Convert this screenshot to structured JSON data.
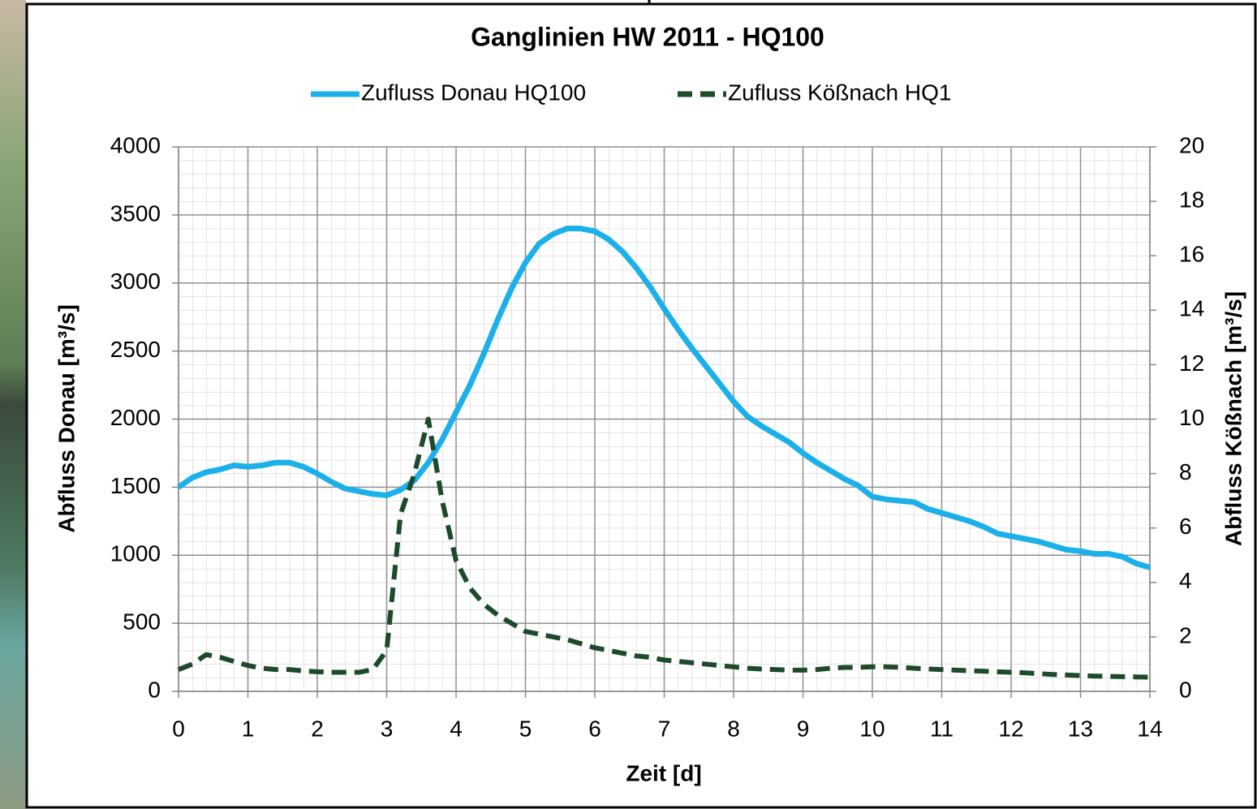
{
  "chart_data": {
    "type": "line",
    "title": "Ganglinien HW 2011 - HQ100",
    "x_label": "Zeit [d]",
    "y_label": "Abfluss Donau [m³/s]",
    "y2_label": "Abfluss Kößnach [m³/s]",
    "x": [
      0,
      0.2,
      0.4,
      0.6,
      0.8,
      1,
      1.2,
      1.4,
      1.6,
      1.8,
      2,
      2.2,
      2.4,
      2.6,
      2.8,
      3,
      3.2,
      3.4,
      3.6,
      3.8,
      4,
      4.2,
      4.4,
      4.6,
      4.8,
      5,
      5.2,
      5.4,
      5.6,
      5.8,
      6,
      6.2,
      6.4,
      6.6,
      6.8,
      7,
      7.2,
      7.4,
      7.6,
      7.8,
      8,
      8.2,
      8.4,
      8.6,
      8.8,
      9,
      9.2,
      9.4,
      9.6,
      9.8,
      10,
      10.2,
      10.4,
      10.6,
      10.8,
      11,
      11.2,
      11.4,
      11.6,
      11.8,
      12,
      12.2,
      12.4,
      12.6,
      12.8,
      13,
      13.2,
      13.4,
      13.6,
      13.8,
      14
    ],
    "series": [
      {
        "name": "Zufluss Donau HQ100",
        "color": "#1cb0ea",
        "linestyle": "solid",
        "values": [
          1500,
          1570,
          1610,
          1630,
          1660,
          1650,
          1660,
          1680,
          1680,
          1650,
          1600,
          1540,
          1490,
          1470,
          1450,
          1440,
          1480,
          1550,
          1680,
          1850,
          2050,
          2250,
          2480,
          2730,
          2960,
          3150,
          3290,
          3360,
          3400,
          3400,
          3380,
          3320,
          3230,
          3110,
          2970,
          2810,
          2660,
          2520,
          2390,
          2260,
          2130,
          2020,
          1950,
          1890,
          1830,
          1750,
          1680,
          1620,
          1560,
          1510,
          1430,
          1410,
          1400,
          1390,
          1340,
          1310,
          1280,
          1250,
          1210,
          1160,
          1140,
          1120,
          1100,
          1070,
          1040,
          1030,
          1010,
          1010,
          990,
          940,
          910
        ]
      },
      {
        "name": "Zufluss Kößnach HQ1",
        "color": "#1d4a2a",
        "linestyle": "dashed",
        "axis": "y2",
        "values": [
          0.8,
          1.0,
          1.35,
          1.25,
          1.1,
          0.95,
          0.85,
          0.8,
          0.8,
          0.75,
          0.72,
          0.7,
          0.7,
          0.7,
          0.8,
          1.5,
          6.5,
          8.0,
          10.0,
          7.0,
          4.8,
          3.8,
          3.2,
          2.8,
          2.5,
          2.2,
          2.1,
          2.0,
          1.9,
          1.75,
          1.6,
          1.5,
          1.4,
          1.3,
          1.25,
          1.15,
          1.1,
          1.05,
          1.0,
          0.95,
          0.9,
          0.85,
          0.82,
          0.8,
          0.78,
          0.78,
          0.8,
          0.85,
          0.88,
          0.88,
          0.9,
          0.9,
          0.88,
          0.85,
          0.82,
          0.8,
          0.78,
          0.76,
          0.74,
          0.72,
          0.7,
          0.68,
          0.65,
          0.62,
          0.6,
          0.58,
          0.56,
          0.55,
          0.54,
          0.53,
          0.52
        ]
      }
    ],
    "xlim": [
      0,
      14
    ],
    "xticks": [
      0,
      1,
      2,
      3,
      4,
      5,
      6,
      7,
      8,
      9,
      10,
      11,
      12,
      13,
      14
    ],
    "ylim": [
      0,
      4000
    ],
    "yticks": [
      0,
      500,
      1000,
      1500,
      2000,
      2500,
      3000,
      3500,
      4000
    ],
    "y2lim": [
      0,
      20
    ],
    "y2ticks": [
      0,
      2,
      4,
      6,
      8,
      10,
      12,
      14,
      16,
      18,
      20
    ],
    "grid": true,
    "legend": "top"
  }
}
